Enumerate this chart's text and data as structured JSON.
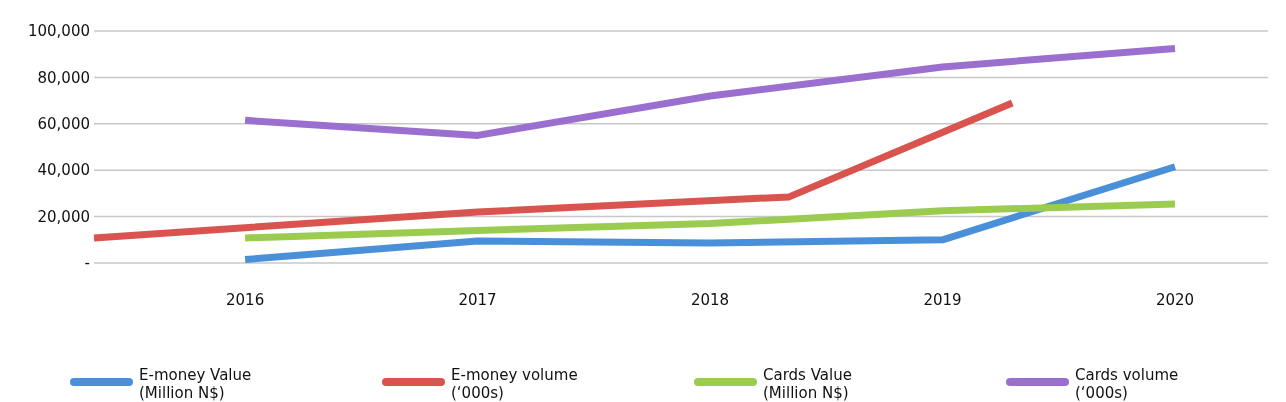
{
  "chart_data": {
    "type": "line",
    "xlim": [
      2015.35,
      2020.4
    ],
    "xticks": [
      2016,
      2017,
      2018,
      2019,
      2020
    ],
    "ylim": [
      0,
      100000
    ],
    "yticks": [
      {
        "value": 0,
        "label": "-"
      },
      {
        "value": 20000,
        "label": "20,000"
      },
      {
        "value": 40000,
        "label": "40,000"
      },
      {
        "value": 60000,
        "label": "60,000"
      },
      {
        "value": 80000,
        "label": "80,000"
      },
      {
        "value": 100000,
        "label": "100,000"
      }
    ],
    "grid": "y",
    "legend": "bottom",
    "line_style": "solid",
    "series": [
      {
        "name": "E-money Value (Million N$)",
        "color": "#4a90d9",
        "x": [
          2016,
          2017,
          2018,
          2019,
          2020
        ],
        "values": [
          1500,
          9500,
          8600,
          10000,
          41500
        ]
      },
      {
        "name": "E-money volume (‘000s)",
        "color": "#d9534f",
        "x": [
          2015.35,
          2017,
          2018.34,
          2019.3
        ],
        "values": [
          10800,
          22000,
          28500,
          69000
        ]
      },
      {
        "name": "Cards Value (Million N$)",
        "color": "#9bcc50",
        "x": [
          2016,
          2017,
          2018,
          2019,
          2020
        ],
        "values": [
          10800,
          14000,
          17000,
          22500,
          25400
        ]
      },
      {
        "name": "Cards volume (‘000s)",
        "color": "#9b6fcf",
        "x": [
          2016,
          2017,
          2018,
          2019,
          2020
        ],
        "values": [
          61500,
          55000,
          72000,
          84500,
          92500
        ]
      }
    ]
  }
}
